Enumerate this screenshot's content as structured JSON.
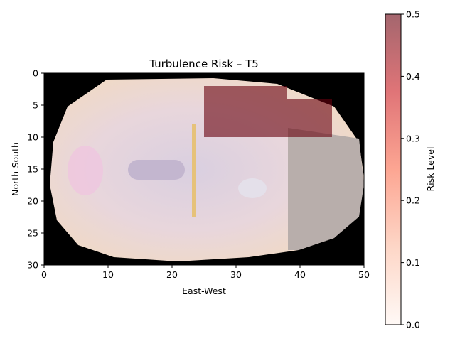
{
  "chart_data": {
    "type": "heatmap",
    "title": "Turbulence Risk – T5",
    "xlabel": "East-West",
    "ylabel": "North-South",
    "xlim": [
      0,
      50
    ],
    "ylim": [
      30,
      0
    ],
    "x_ticks": [
      "0",
      "10",
      "20",
      "30",
      "40",
      "50"
    ],
    "y_ticks": [
      "0",
      "5",
      "10",
      "15",
      "20",
      "25",
      "30"
    ],
    "colorbar": {
      "label": "Risk Level",
      "range": [
        0,
        0.5
      ],
      "ticks": [
        "0.0",
        "0.1",
        "0.2",
        "0.3",
        "0.4",
        "0.5"
      ],
      "cmap_colors": [
        "#fff5f0",
        "#fcbba1",
        "#fb6a4a",
        "#cb181d",
        "#67000d"
      ],
      "alpha": 0.6
    },
    "background": "satellite image overlay",
    "risk_regions": [
      {
        "x": [
          25,
          38
        ],
        "y": [
          2,
          10
        ],
        "value": 0.5
      },
      {
        "x": [
          38,
          45
        ],
        "y": [
          4,
          10
        ],
        "value": 0.5
      }
    ]
  }
}
